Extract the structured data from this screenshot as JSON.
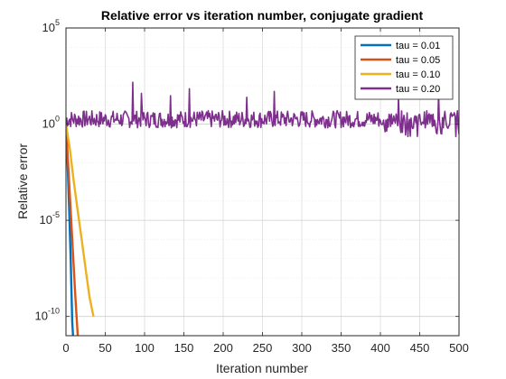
{
  "chart_data": {
    "type": "line",
    "title": "Relative error vs iteration number, conjugate gradient",
    "xlabel": "Iteration number",
    "ylabel": "Relative error",
    "xlim": [
      0,
      500
    ],
    "ylim_exponent": [
      -11,
      5
    ],
    "y_scale": "log",
    "grid": true,
    "legend_position": "top-right",
    "x_ticks": [
      {
        "value": 0,
        "label": "0"
      },
      {
        "value": 50,
        "label": "50"
      },
      {
        "value": 100,
        "label": "100"
      },
      {
        "value": 150,
        "label": "150"
      },
      {
        "value": 200,
        "label": "200"
      },
      {
        "value": 250,
        "label": "250"
      },
      {
        "value": 300,
        "label": "300"
      },
      {
        "value": 350,
        "label": "350"
      },
      {
        "value": 400,
        "label": "400"
      },
      {
        "value": 450,
        "label": "450"
      },
      {
        "value": 500,
        "label": "500"
      }
    ],
    "y_ticks": [
      {
        "exp": 5,
        "base": "10",
        "sup": "5"
      },
      {
        "exp": 0,
        "base": "10",
        "sup": "0"
      },
      {
        "exp": -5,
        "base": "10",
        "sup": "-5"
      },
      {
        "exp": -10,
        "base": "10",
        "sup": "-10"
      }
    ],
    "series": [
      {
        "name": "tau = 0.01",
        "color": "#0072BD",
        "points": [
          [
            0,
            1
          ],
          [
            2,
            0.01
          ],
          [
            4,
            5e-05
          ],
          [
            6,
            1e-07
          ],
          [
            8,
            5e-11
          ],
          [
            9,
            1e-11
          ]
        ]
      },
      {
        "name": "tau = 0.05",
        "color": "#D95319",
        "points": [
          [
            0,
            1
          ],
          [
            4,
            0.001
          ],
          [
            8,
            1e-06
          ],
          [
            12,
            1e-09
          ],
          [
            15,
            1e-11
          ]
        ]
      },
      {
        "name": "tau = 0.10",
        "color": "#EDB120",
        "points": [
          [
            0,
            1
          ],
          [
            5,
            0.05
          ],
          [
            10,
            0.001
          ],
          [
            15,
            3e-05
          ],
          [
            20,
            1e-06
          ],
          [
            25,
            3e-08
          ],
          [
            30,
            1e-09
          ],
          [
            35,
            1e-10
          ]
        ]
      },
      {
        "name": "tau = 0.20",
        "color": "#7E2F8E",
        "generator": {
          "n_max": 500,
          "center": 1.8,
          "spread": 1.0,
          "seed": 7
        },
        "spikes": [
          [
            85,
            150
          ],
          [
            96,
            40
          ],
          [
            133,
            30
          ],
          [
            157,
            70
          ],
          [
            230,
            25
          ],
          [
            265,
            50
          ],
          [
            423,
            25
          ],
          [
            474,
            40
          ]
        ],
        "end_value": 0.3
      }
    ]
  }
}
